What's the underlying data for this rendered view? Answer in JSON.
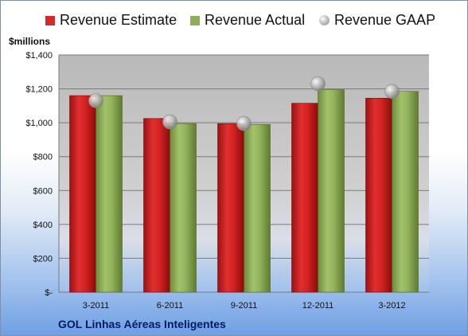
{
  "footer": {
    "company": "GOL Linhas Aéreas Inteligentes"
  },
  "colors": {
    "estimate": "#d42a2a",
    "actual": "#8fae5a",
    "gaap": "#a8a8a8"
  },
  "chart_data": {
    "type": "bar",
    "title": "",
    "unit_label": "$millions",
    "categories": [
      "3-2011",
      "6-2011",
      "9-2011",
      "12-2011",
      "3-2012"
    ],
    "series": [
      {
        "name": "Revenue Estimate",
        "type": "bar",
        "values": [
          1160,
          1025,
          995,
          1115,
          1145
        ]
      },
      {
        "name": "Revenue Actual",
        "type": "bar",
        "values": [
          1160,
          995,
          990,
          1195,
          1185
        ]
      },
      {
        "name": "Revenue GAAP",
        "type": "bubble",
        "values": [
          1130,
          1005,
          995,
          1230,
          1185
        ]
      }
    ],
    "ylim": [
      0,
      1400
    ],
    "yticks": [
      0,
      200,
      400,
      600,
      800,
      1000,
      1200,
      1400
    ],
    "ytick_labels": [
      "$-",
      "$200",
      "$400",
      "$600",
      "$800",
      "$1,000",
      "$1,200",
      "$1,400"
    ],
    "grid": true,
    "legend_position": "top"
  }
}
